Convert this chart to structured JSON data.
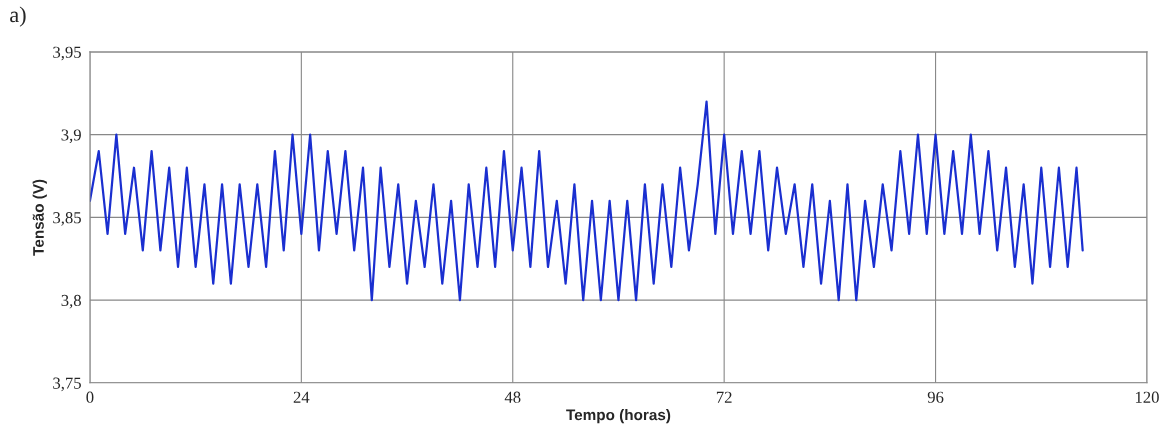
{
  "chart_data": {
    "type": "line",
    "xlabel": "Tempo (horas)",
    "ylabel": "Tensão (V)",
    "annotations": [
      "a)"
    ],
    "x": [
      0,
      1,
      2,
      3,
      4,
      5,
      6,
      7,
      8,
      9,
      10,
      11,
      12,
      13,
      14,
      15,
      16,
      17,
      18,
      19,
      20,
      21,
      22,
      23,
      24,
      25,
      26,
      27,
      28,
      29,
      30,
      31,
      32,
      33,
      34,
      35,
      36,
      37,
      38,
      39,
      40,
      41,
      42,
      43,
      44,
      45,
      46,
      47,
      48,
      49,
      50,
      51,
      52,
      53,
      54,
      55,
      56,
      57,
      58,
      59,
      60,
      61,
      62,
      63,
      64,
      65,
      66,
      67,
      68,
      69,
      70,
      71,
      72,
      73,
      74,
      75,
      76,
      77,
      78,
      79,
      80,
      81,
      82,
      83,
      84,
      85,
      86,
      87,
      88,
      89,
      90,
      91,
      92,
      93,
      94,
      95,
      96,
      97,
      98,
      99,
      100,
      101,
      102,
      103,
      104,
      105,
      106,
      107,
      108,
      109,
      110,
      111,
      112,
      112.7
    ],
    "series": [
      {
        "color": "#1a2fd0",
        "values": [
          3.86,
          3.89,
          3.84,
          3.9,
          3.84,
          3.88,
          3.83,
          3.89,
          3.83,
          3.88,
          3.82,
          3.88,
          3.82,
          3.87,
          3.81,
          3.87,
          3.81,
          3.87,
          3.82,
          3.87,
          3.82,
          3.89,
          3.83,
          3.9,
          3.84,
          3.9,
          3.83,
          3.89,
          3.84,
          3.89,
          3.83,
          3.88,
          3.8,
          3.88,
          3.82,
          3.87,
          3.81,
          3.86,
          3.82,
          3.87,
          3.81,
          3.86,
          3.8,
          3.87,
          3.82,
          3.88,
          3.82,
          3.89,
          3.83,
          3.88,
          3.82,
          3.89,
          3.82,
          3.86,
          3.81,
          3.87,
          3.8,
          3.86,
          3.8,
          3.86,
          3.8,
          3.86,
          3.8,
          3.87,
          3.81,
          3.87,
          3.82,
          3.88,
          3.83,
          3.87,
          3.92,
          3.84,
          3.9,
          3.84,
          3.89,
          3.84,
          3.89,
          3.83,
          3.88,
          3.84,
          3.87,
          3.82,
          3.87,
          3.81,
          3.86,
          3.8,
          3.87,
          3.8,
          3.86,
          3.82,
          3.87,
          3.83,
          3.89,
          3.84,
          3.9,
          3.84,
          3.9,
          3.84,
          3.89,
          3.84,
          3.9,
          3.84,
          3.89,
          3.83,
          3.88,
          3.82,
          3.87,
          3.81,
          3.88,
          3.82,
          3.88,
          3.82,
          3.88,
          3.83
        ]
      }
    ],
    "xlim": [
      0,
      120
    ],
    "xticks": [
      0,
      24,
      48,
      72,
      96,
      120
    ],
    "ylim": [
      3.75,
      3.95
    ],
    "yticks": [
      {
        "value": 3.75,
        "label": "3,75"
      },
      {
        "value": 3.8,
        "label": "3,8"
      },
      {
        "value": 3.85,
        "label": "3,85"
      },
      {
        "value": 3.9,
        "label": "3,9"
      },
      {
        "value": 3.95,
        "label": "3,95"
      }
    ],
    "grid": true,
    "marker": "none",
    "line_style": "solid"
  }
}
